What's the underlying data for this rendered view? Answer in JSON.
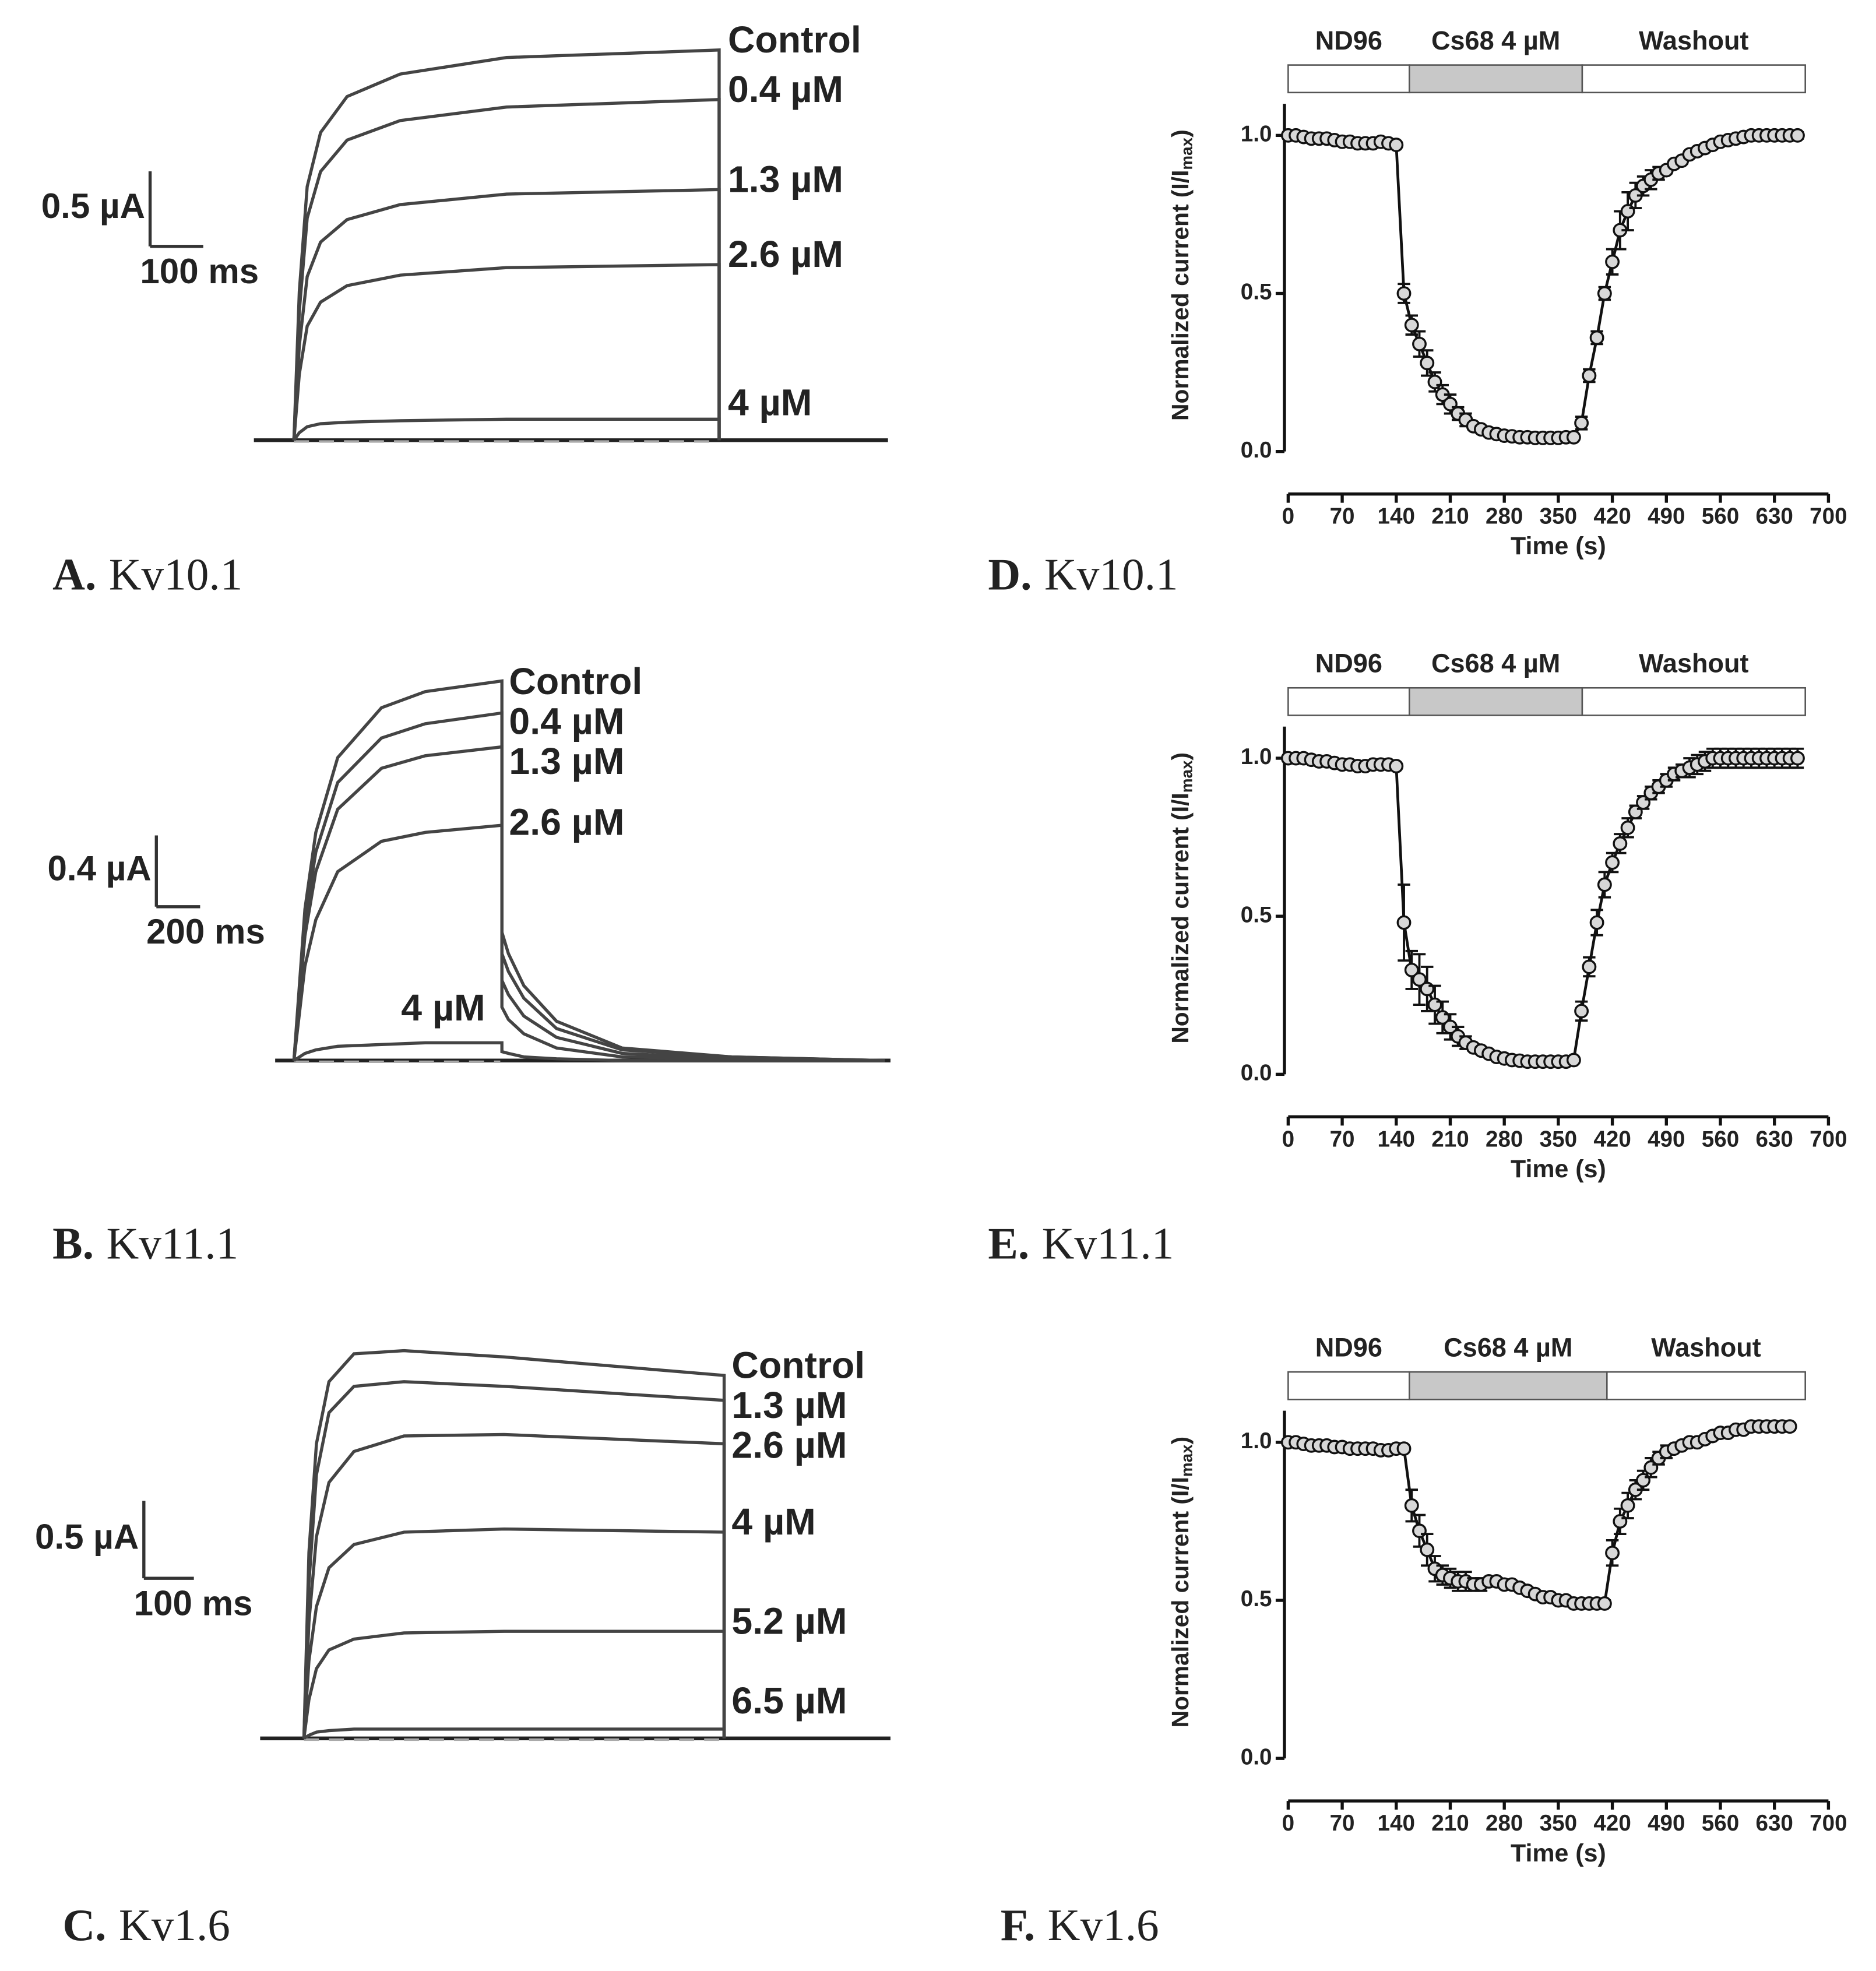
{
  "chart_data": [
    {
      "type": "trace",
      "panel": "A.",
      "title": "Kv10.1",
      "scale_bar": {
        "y": {
          "value": 0.5,
          "label": "0.5 µA"
        },
        "x": {
          "value": 100,
          "label": "100 ms"
        }
      },
      "x": [
        0,
        10,
        25,
        50,
        100,
        200,
        400,
        800
      ],
      "series": [
        {
          "name": "Control",
          "values": [
            0,
            0.99,
            1.69,
            2.05,
            2.29,
            2.44,
            2.55,
            2.6
          ]
        },
        {
          "name": "0.4 µM",
          "values": [
            0,
            0.86,
            1.48,
            1.79,
            2.0,
            2.13,
            2.22,
            2.27
          ]
        },
        {
          "name": "1.3 µM",
          "values": [
            0,
            0.63,
            1.09,
            1.32,
            1.47,
            1.57,
            1.64,
            1.67
          ]
        },
        {
          "name": "2.6 µM",
          "values": [
            0,
            0.44,
            0.76,
            0.92,
            1.03,
            1.1,
            1.15,
            1.17
          ]
        },
        {
          "name": "4 µM",
          "values": [
            0,
            0.05,
            0.09,
            0.11,
            0.12,
            0.13,
            0.14,
            0.14
          ]
        }
      ]
    },
    {
      "type": "trace",
      "panel": "B.",
      "title": "Kv11.1",
      "scale_bar": {
        "y": {
          "value": 0.4,
          "label": "0.4 µA"
        },
        "x": {
          "value": 200,
          "label": "200 ms"
        }
      },
      "x": [
        0,
        50,
        100,
        200,
        400,
        600,
        950,
        950,
        980,
        1050,
        1200,
        1500,
        2000,
        2700
      ],
      "series": [
        {
          "name": "Control",
          "values": [
            0,
            0.85,
            1.28,
            1.7,
            1.98,
            2.07,
            2.13,
            0.72,
            0.6,
            0.42,
            0.22,
            0.07,
            0.02,
            0
          ]
        },
        {
          "name": "0.4 µM",
          "values": [
            0,
            0.78,
            1.17,
            1.56,
            1.81,
            1.89,
            1.95,
            0.6,
            0.5,
            0.35,
            0.18,
            0.06,
            0.02,
            0
          ]
        },
        {
          "name": "1.3 µM",
          "values": [
            0,
            0.7,
            1.06,
            1.41,
            1.64,
            1.71,
            1.76,
            0.45,
            0.37,
            0.25,
            0.13,
            0.04,
            0.01,
            0
          ]
        },
        {
          "name": "2.6 µM",
          "values": [
            0,
            0.53,
            0.79,
            1.06,
            1.23,
            1.28,
            1.32,
            0.3,
            0.23,
            0.15,
            0.07,
            0.02,
            0.01,
            0
          ]
        },
        {
          "name": "4 µM",
          "values": [
            0,
            0.04,
            0.06,
            0.08,
            0.09,
            0.1,
            0.1,
            0.05,
            0.04,
            0.02,
            0.01,
            0,
            0,
            0
          ]
        }
      ]
    },
    {
      "type": "trace",
      "panel": "C.",
      "title": "Kv1.6",
      "scale_bar": {
        "y": {
          "value": 0.5,
          "label": "0.5 µA"
        },
        "x": {
          "value": 100,
          "label": "100 ms"
        }
      },
      "x": [
        0,
        10,
        25,
        50,
        100,
        200,
        400,
        840
      ],
      "series": [
        {
          "name": "Control",
          "values": [
            0,
            1.2,
            1.9,
            2.3,
            2.48,
            2.5,
            2.46,
            2.34
          ]
        },
        {
          "name": "1.3 µM",
          "values": [
            0,
            1.0,
            1.7,
            2.1,
            2.27,
            2.3,
            2.27,
            2.18
          ]
        },
        {
          "name": "2.6 µM",
          "values": [
            0,
            0.75,
            1.3,
            1.65,
            1.85,
            1.95,
            1.96,
            1.9
          ]
        },
        {
          "name": "4 µM",
          "values": [
            0,
            0.5,
            0.85,
            1.1,
            1.25,
            1.33,
            1.35,
            1.33
          ]
        },
        {
          "name": "5.2 µM",
          "values": [
            0,
            0.25,
            0.45,
            0.57,
            0.64,
            0.68,
            0.69,
            0.69
          ]
        },
        {
          "name": "6.5 µM",
          "values": [
            0,
            0.02,
            0.04,
            0.05,
            0.06,
            0.06,
            0.06,
            0.06
          ]
        }
      ]
    },
    {
      "type": "line",
      "panel": "D.",
      "title": "Kv10.1",
      "xlabel": "Time (s)",
      "ylabel": [
        "Normalized current (I/I",
        "max",
        ")"
      ],
      "conditions": [
        {
          "label": "ND96",
          "start": 0,
          "end": 157
        },
        {
          "label": "Cs68 4 µM",
          "start": 157,
          "end": 381,
          "color": "#c8c8c8"
        },
        {
          "label": "Washout",
          "start": 381,
          "end": 670
        }
      ],
      "xlim": [
        0,
        700
      ],
      "xticks": [
        0,
        70,
        140,
        210,
        280,
        350,
        420,
        490,
        560,
        630,
        700
      ],
      "ylim": [
        0,
        1.1
      ],
      "yticks": [
        {
          "value": 0,
          "label": "0.0"
        },
        0.5,
        {
          "value": 1,
          "label": "1.0"
        }
      ],
      "x": [
        0,
        10,
        20,
        30,
        40,
        50,
        60,
        70,
        80,
        90,
        100,
        110,
        120,
        130,
        140,
        150,
        160,
        170,
        180,
        190,
        200,
        210,
        220,
        230,
        240,
        250,
        260,
        270,
        280,
        290,
        300,
        310,
        320,
        330,
        340,
        350,
        360,
        370,
        380,
        390,
        400,
        410,
        420,
        430,
        440,
        450,
        460,
        470,
        480,
        490,
        500,
        510,
        520,
        530,
        540,
        550,
        560,
        570,
        580,
        590,
        600,
        610,
        620,
        630,
        640,
        650,
        660
      ],
      "values": [
        1.0,
        1.0,
        0.995,
        0.99,
        0.99,
        0.99,
        0.985,
        0.98,
        0.98,
        0.975,
        0.975,
        0.975,
        0.98,
        0.975,
        0.97,
        0.5,
        0.4,
        0.34,
        0.28,
        0.22,
        0.18,
        0.15,
        0.12,
        0.1,
        0.08,
        0.07,
        0.06,
        0.055,
        0.05,
        0.048,
        0.045,
        0.045,
        0.043,
        0.043,
        0.043,
        0.043,
        0.045,
        0.045,
        0.09,
        0.24,
        0.36,
        0.5,
        0.6,
        0.7,
        0.76,
        0.81,
        0.84,
        0.86,
        0.88,
        0.89,
        0.91,
        0.92,
        0.94,
        0.95,
        0.96,
        0.97,
        0.98,
        0.985,
        0.99,
        0.995,
        1.0,
        1.0,
        1.0,
        1.0,
        1.0,
        1.0,
        1.0
      ],
      "errors": [
        0.005,
        0.005,
        0.005,
        0.005,
        0.005,
        0.005,
        0.005,
        0.005,
        0.005,
        0.005,
        0.005,
        0.005,
        0.005,
        0.005,
        0.005,
        0.03,
        0.03,
        0.04,
        0.04,
        0.03,
        0.03,
        0.03,
        0.02,
        0.02,
        0.01,
        0.01,
        0.005,
        0.005,
        0.005,
        0.005,
        0.005,
        0.005,
        0.005,
        0.005,
        0.005,
        0.005,
        0.005,
        0.005,
        0.02,
        0.02,
        0.02,
        0.02,
        0.04,
        0.06,
        0.06,
        0.04,
        0.03,
        0.03,
        0.02,
        0.01,
        0.01,
        0.01,
        0.01,
        0.01,
        0.01,
        0.01,
        0.01,
        0.01,
        0.01,
        0.01,
        0.01,
        0.01,
        0.01,
        0.01,
        0.01,
        0.01,
        0.01
      ]
    },
    {
      "type": "line",
      "panel": "E.",
      "title": "Kv11.1",
      "xlabel": "Time (s)",
      "ylabel": [
        "Normalized current (I/I",
        "max",
        ")"
      ],
      "conditions": [
        {
          "label": "ND96",
          "start": 0,
          "end": 157
        },
        {
          "label": "Cs68 4 µM",
          "start": 157,
          "end": 381,
          "color": "#c8c8c8"
        },
        {
          "label": "Washout",
          "start": 381,
          "end": 670
        }
      ],
      "xlim": [
        0,
        700
      ],
      "xticks": [
        0,
        70,
        140,
        210,
        280,
        350,
        420,
        490,
        560,
        630,
        700
      ],
      "ylim": [
        0,
        1.1
      ],
      "yticks": [
        {
          "value": 0,
          "label": "0.0"
        },
        0.5,
        {
          "value": 1,
          "label": "1.0"
        }
      ],
      "x": [
        0,
        10,
        20,
        30,
        40,
        50,
        60,
        70,
        80,
        90,
        100,
        110,
        120,
        130,
        140,
        150,
        160,
        170,
        180,
        190,
        200,
        210,
        220,
        230,
        240,
        250,
        260,
        270,
        280,
        290,
        300,
        310,
        320,
        330,
        340,
        350,
        360,
        370,
        380,
        390,
        400,
        410,
        420,
        430,
        440,
        450,
        460,
        470,
        480,
        490,
        500,
        510,
        520,
        530,
        540,
        550,
        560,
        570,
        580,
        590,
        600,
        610,
        620,
        630,
        640,
        650,
        660
      ],
      "values": [
        1.0,
        1.0,
        1.0,
        0.995,
        0.99,
        0.99,
        0.985,
        0.98,
        0.98,
        0.975,
        0.975,
        0.98,
        0.98,
        0.98,
        0.975,
        0.48,
        0.33,
        0.3,
        0.27,
        0.22,
        0.18,
        0.15,
        0.12,
        0.1,
        0.085,
        0.075,
        0.065,
        0.055,
        0.05,
        0.045,
        0.043,
        0.04,
        0.04,
        0.04,
        0.04,
        0.04,
        0.04,
        0.045,
        0.2,
        0.34,
        0.48,
        0.6,
        0.67,
        0.73,
        0.78,
        0.83,
        0.86,
        0.89,
        0.91,
        0.93,
        0.95,
        0.96,
        0.97,
        0.98,
        0.99,
        1.0,
        1.0,
        1.0,
        1.0,
        1.0,
        1.0,
        1.0,
        1.0,
        1.0,
        1.0,
        1.0,
        1.0
      ],
      "errors": [
        0.005,
        0.005,
        0.005,
        0.005,
        0.005,
        0.005,
        0.005,
        0.005,
        0.005,
        0.005,
        0.005,
        0.005,
        0.005,
        0.005,
        0.005,
        0.12,
        0.06,
        0.08,
        0.07,
        0.06,
        0.05,
        0.04,
        0.03,
        0.02,
        0.01,
        0.01,
        0.005,
        0.005,
        0.005,
        0.005,
        0.005,
        0.005,
        0.005,
        0.005,
        0.005,
        0.005,
        0.005,
        0.005,
        0.03,
        0.03,
        0.04,
        0.04,
        0.03,
        0.03,
        0.03,
        0.02,
        0.02,
        0.02,
        0.02,
        0.02,
        0.02,
        0.02,
        0.03,
        0.03,
        0.03,
        0.03,
        0.03,
        0.03,
        0.03,
        0.03,
        0.03,
        0.03,
        0.03,
        0.03,
        0.03,
        0.03,
        0.03
      ]
    },
    {
      "type": "line",
      "panel": "F.",
      "title": "Kv1.6",
      "xlabel": "Time (s)",
      "ylabel": [
        "Normalized current (I/I",
        "max",
        ")"
      ],
      "conditions": [
        {
          "label": "ND96",
          "start": 0,
          "end": 157
        },
        {
          "label": "Cs68 4 µM",
          "start": 157,
          "end": 413,
          "color": "#c8c8c8"
        },
        {
          "label": "Washout",
          "start": 413,
          "end": 670
        }
      ],
      "xlim": [
        0,
        700
      ],
      "xticks": [
        0,
        70,
        140,
        210,
        280,
        350,
        420,
        490,
        560,
        630,
        700
      ],
      "ylim": [
        0,
        1.1
      ],
      "yticks": [
        {
          "value": 0,
          "label": "0.0"
        },
        0.5,
        {
          "value": 1,
          "label": "1.0"
        }
      ],
      "x": [
        0,
        10,
        20,
        30,
        40,
        50,
        60,
        70,
        80,
        90,
        100,
        110,
        120,
        130,
        140,
        150,
        160,
        170,
        180,
        190,
        200,
        210,
        220,
        230,
        240,
        250,
        260,
        270,
        280,
        290,
        300,
        310,
        320,
        330,
        340,
        350,
        360,
        370,
        380,
        390,
        400,
        410,
        420,
        430,
        440,
        450,
        460,
        470,
        480,
        490,
        500,
        510,
        520,
        530,
        540,
        550,
        560,
        570,
        580,
        590,
        600,
        610,
        620,
        630,
        640,
        650
      ],
      "values": [
        1.0,
        1.0,
        0.995,
        0.99,
        0.99,
        0.99,
        0.985,
        0.985,
        0.98,
        0.98,
        0.98,
        0.98,
        0.975,
        0.975,
        0.98,
        0.98,
        0.8,
        0.72,
        0.66,
        0.6,
        0.58,
        0.57,
        0.56,
        0.56,
        0.55,
        0.55,
        0.56,
        0.56,
        0.55,
        0.55,
        0.54,
        0.53,
        0.52,
        0.51,
        0.51,
        0.5,
        0.5,
        0.49,
        0.49,
        0.49,
        0.49,
        0.49,
        0.65,
        0.75,
        0.8,
        0.85,
        0.88,
        0.92,
        0.95,
        0.97,
        0.98,
        0.99,
        1.0,
        1.0,
        1.01,
        1.02,
        1.03,
        1.03,
        1.04,
        1.04,
        1.05,
        1.05,
        1.05,
        1.05,
        1.05,
        1.05
      ],
      "errors": [
        0.005,
        0.005,
        0.005,
        0.005,
        0.005,
        0.005,
        0.005,
        0.005,
        0.005,
        0.005,
        0.005,
        0.005,
        0.005,
        0.005,
        0.005,
        0.005,
        0.05,
        0.05,
        0.05,
        0.04,
        0.03,
        0.03,
        0.03,
        0.03,
        0.02,
        0.02,
        0.01,
        0.01,
        0.01,
        0.01,
        0.01,
        0.01,
        0.01,
        0.01,
        0.01,
        0.01,
        0.01,
        0.01,
        0.01,
        0.01,
        0.01,
        0.01,
        0.04,
        0.04,
        0.04,
        0.03,
        0.03,
        0.03,
        0.02,
        0.02,
        0.01,
        0.01,
        0.01,
        0.01,
        0.01,
        0.01,
        0.01,
        0.01,
        0.01,
        0.01,
        0.01,
        0.01,
        0.01,
        0.01,
        0.01,
        0.01
      ]
    }
  ]
}
